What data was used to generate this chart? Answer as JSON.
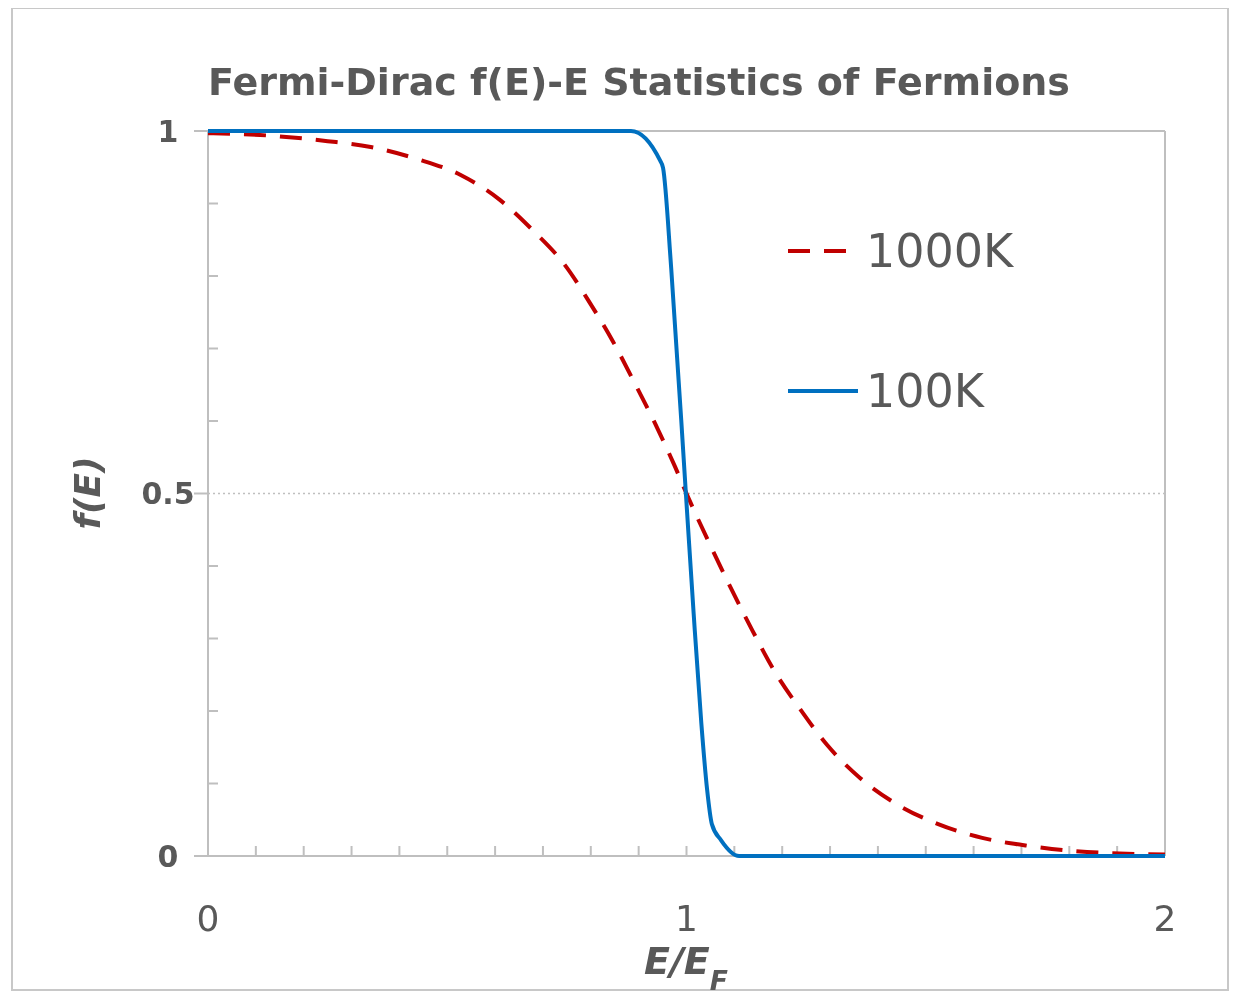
{
  "chart_data": {
    "type": "line",
    "title": "Fermi-Dirac f(E)-E Statistics of Fermions",
    "xlabel": "E/E$_{F}$",
    "ylabel": "f(E)",
    "xlim": [
      0,
      2
    ],
    "ylim": [
      0,
      1
    ],
    "xticks": [
      0,
      {
        "value": 0.1,
        "label": null
      },
      {
        "value": 0.2,
        "label": null
      },
      {
        "value": 0.3,
        "label": null
      },
      {
        "value": 0.4,
        "label": null
      },
      {
        "value": 0.5,
        "label": null
      },
      {
        "value": 0.6,
        "label": null
      },
      {
        "value": 0.7,
        "label": null
      },
      {
        "value": 0.8,
        "label": null
      },
      {
        "value": 0.9,
        "label": null
      },
      1,
      {
        "value": 1.1,
        "label": null
      },
      {
        "value": 1.2,
        "label": null
      },
      {
        "value": 1.3,
        "label": null
      },
      {
        "value": 1.4,
        "label": null
      },
      {
        "value": 1.5,
        "label": null
      },
      {
        "value": 1.6,
        "label": null
      },
      {
        "value": 1.7,
        "label": null
      },
      {
        "value": 1.8,
        "label": null
      },
      {
        "value": 1.9,
        "label": null
      },
      2
    ],
    "yticks": [
      0,
      {
        "value": 0.1,
        "label": null
      },
      {
        "value": 0.2,
        "label": null
      },
      {
        "value": 0.3,
        "label": null
      },
      {
        "value": 0.4,
        "label": null
      },
      0.5,
      {
        "value": 0.6,
        "label": null
      },
      {
        "value": 0.7,
        "label": null
      },
      {
        "value": 0.8,
        "label": null
      },
      {
        "value": 0.9,
        "label": null
      },
      1
    ],
    "grid": "y",
    "legend": "top right",
    "marker": "none",
    "series": [
      {
        "name": "1000K",
        "color": "#c00000",
        "line_style": "dashed",
        "x": [
          0,
          0.063,
          0.25,
          0.34,
          0.439,
          0.529,
          0.61,
          0.679,
          0.746,
          0.798,
          0.846,
          0.892,
          0.934,
          0.976,
          1,
          1.053,
          1.137,
          1.183,
          1.237,
          1.294,
          1.362,
          1.438,
          1.526,
          1.618,
          1.714,
          1.806,
          2
        ],
        "values": [
          0.997,
          0.996,
          0.986,
          0.978,
          0.961,
          0.939,
          0.905,
          0.863,
          0.815,
          0.763,
          0.71,
          0.652,
          0.597,
          0.537,
          0.5,
          0.424,
          0.312,
          0.256,
          0.203,
          0.153,
          0.108,
          0.072,
          0.044,
          0.025,
          0.014,
          0.007,
          0.002
        ]
      },
      {
        "name": "100K",
        "color": "#0070c0",
        "line_style": "solid",
        "x": [
          0,
          0.5,
          0.884,
          0.945,
          0.951,
          0.968,
          0.999,
          1.015,
          1.031,
          1.043,
          1.053,
          1.072,
          1.11,
          1.5,
          2
        ],
        "values": [
          1,
          1,
          1,
          0.959,
          0.949,
          0.811,
          0.497,
          0.334,
          0.183,
          0.092,
          0.044,
          0.022,
          0,
          0,
          0
        ]
      }
    ]
  }
}
